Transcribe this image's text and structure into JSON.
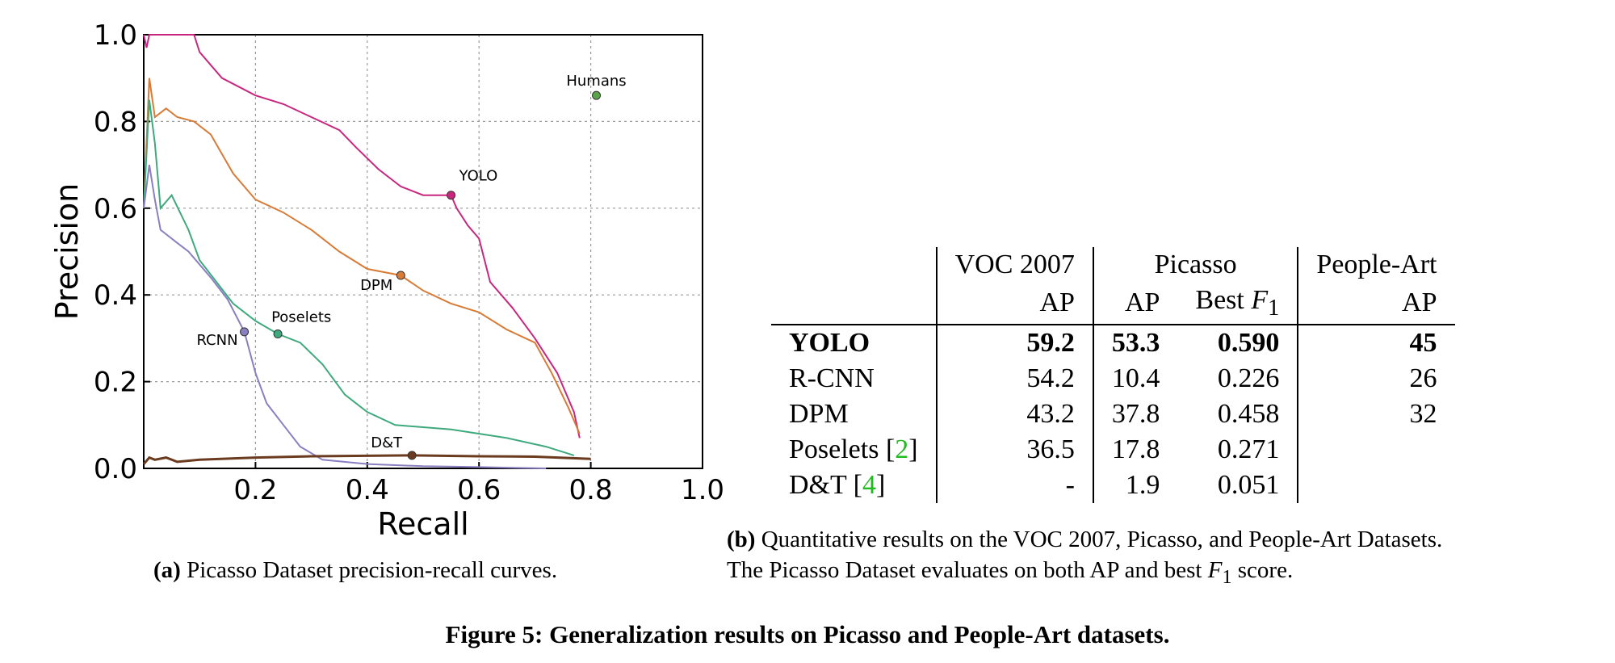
{
  "chart_data": {
    "type": "line",
    "xlabel": "Recall",
    "ylabel": "Precision",
    "xlim": [
      0,
      1
    ],
    "ylim": [
      0,
      1
    ],
    "x_ticks": [
      "0.2",
      "0.4",
      "0.6",
      "0.8",
      "1.0"
    ],
    "y_ticks": [
      "0.0",
      "0.2",
      "0.4",
      "0.6",
      "0.8",
      "1.0"
    ],
    "grid": true,
    "series": [
      {
        "name": "YOLO",
        "color": "#c9277f",
        "label_point": [
          0.55,
          0.63
        ],
        "x": [
          0.0,
          0.005,
          0.01,
          0.05,
          0.09,
          0.1,
          0.14,
          0.2,
          0.25,
          0.3,
          0.35,
          0.38,
          0.42,
          0.46,
          0.5,
          0.55,
          0.56,
          0.58,
          0.6,
          0.62,
          0.66,
          0.7,
          0.74,
          0.77,
          0.78
        ],
        "y": [
          1.0,
          0.97,
          1.0,
          1.0,
          1.0,
          0.96,
          0.9,
          0.86,
          0.84,
          0.81,
          0.78,
          0.74,
          0.69,
          0.65,
          0.63,
          0.63,
          0.6,
          0.56,
          0.53,
          0.43,
          0.37,
          0.3,
          0.22,
          0.13,
          0.07
        ]
      },
      {
        "name": "DPM",
        "color": "#d77b37",
        "label_point": [
          0.46,
          0.445
        ],
        "x": [
          0.0,
          0.01,
          0.02,
          0.04,
          0.06,
          0.09,
          0.12,
          0.16,
          0.2,
          0.25,
          0.3,
          0.35,
          0.4,
          0.46,
          0.5,
          0.55,
          0.6,
          0.65,
          0.7,
          0.73,
          0.76,
          0.78
        ],
        "y": [
          0.6,
          0.9,
          0.81,
          0.83,
          0.81,
          0.8,
          0.77,
          0.68,
          0.62,
          0.59,
          0.55,
          0.5,
          0.46,
          0.445,
          0.41,
          0.38,
          0.36,
          0.32,
          0.29,
          0.22,
          0.14,
          0.08
        ]
      },
      {
        "name": "Poselets",
        "color": "#3fa97e",
        "label_point": [
          0.24,
          0.31
        ],
        "x": [
          0.0,
          0.01,
          0.02,
          0.03,
          0.05,
          0.08,
          0.1,
          0.13,
          0.16,
          0.2,
          0.24,
          0.28,
          0.32,
          0.36,
          0.4,
          0.45,
          0.55,
          0.65,
          0.72,
          0.77
        ],
        "y": [
          0.6,
          0.85,
          0.75,
          0.6,
          0.63,
          0.55,
          0.48,
          0.43,
          0.38,
          0.34,
          0.31,
          0.29,
          0.24,
          0.17,
          0.13,
          0.1,
          0.09,
          0.07,
          0.05,
          0.03
        ]
      },
      {
        "name": "RCNN",
        "color": "#8a7fc0",
        "label_point": [
          0.18,
          0.315
        ],
        "x": [
          0.0,
          0.01,
          0.02,
          0.03,
          0.06,
          0.08,
          0.12,
          0.15,
          0.18,
          0.2,
          0.22,
          0.25,
          0.28,
          0.32,
          0.4,
          0.5,
          0.6,
          0.72
        ],
        "y": [
          0.6,
          0.7,
          0.62,
          0.55,
          0.52,
          0.5,
          0.44,
          0.39,
          0.315,
          0.22,
          0.15,
          0.1,
          0.05,
          0.02,
          0.01,
          0.005,
          0.003,
          0.0
        ]
      },
      {
        "name": "D&T",
        "color": "#6b3b1f",
        "label_point": [
          0.48,
          0.03
        ],
        "x": [
          0.0,
          0.01,
          0.02,
          0.04,
          0.06,
          0.1,
          0.2,
          0.3,
          0.48,
          0.6,
          0.7,
          0.8
        ],
        "y": [
          0.01,
          0.025,
          0.02,
          0.025,
          0.015,
          0.02,
          0.025,
          0.028,
          0.03,
          0.028,
          0.027,
          0.022
        ]
      },
      {
        "name": "Humans",
        "color": "#5aa54a",
        "label_point": [
          0.81,
          0.86
        ],
        "x": [
          0.81
        ],
        "y": [
          0.86
        ]
      }
    ]
  },
  "captions": {
    "a_label": "(a)",
    "a_text": "Picasso Dataset precision-recall curves.",
    "b_label": "(b)",
    "b_line1": "Quantitative results on the VOC 2007, Picasso, and People-Art Datasets.",
    "b_line2_pre": "The Picasso Dataset evaluates on both AP and best",
    "b_line2_f": "F",
    "b_line2_sub": "1",
    "b_line2_post": "score.",
    "figure_label": "Figure 5:",
    "figure_text": "Generalization results on Picasso and People-Art datasets."
  },
  "table": {
    "header_voc": "VOC 2007",
    "header_picasso": "Picasso",
    "header_people": "People-Art",
    "sub_voc_ap": "AP",
    "sub_pic_ap": "AP",
    "sub_pic_f1_pre": "Best",
    "sub_pic_f1_f": "F",
    "sub_pic_f1_sub": "1",
    "sub_people_ap": "AP",
    "rows": [
      {
        "name": "YOLO",
        "ref": "",
        "voc": "59.2",
        "pic_ap": "53.3",
        "pic_f1": "0.590",
        "people": "45"
      },
      {
        "name": "R-CNN",
        "ref": "",
        "voc": "54.2",
        "pic_ap": "10.4",
        "pic_f1": "0.226",
        "people": "26"
      },
      {
        "name": "DPM",
        "ref": "",
        "voc": "43.2",
        "pic_ap": "37.8",
        "pic_f1": "0.458",
        "people": "32"
      },
      {
        "name": "Poselets",
        "ref": "2",
        "voc": "36.5",
        "pic_ap": "17.8",
        "pic_f1": "0.271",
        "people": ""
      },
      {
        "name": "D&T",
        "ref": "4",
        "voc": "-",
        "pic_ap": "1.9",
        "pic_f1": "0.051",
        "people": ""
      }
    ]
  }
}
